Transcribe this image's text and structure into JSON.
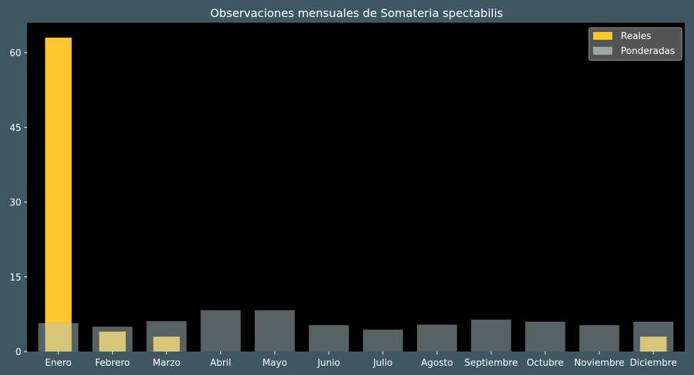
{
  "chart_data": {
    "type": "bar",
    "title": "Observaciones mensuales de Somateria spectabilis",
    "xlabel": "",
    "ylabel": "",
    "categories": [
      "Enero",
      "Febrero",
      "Marzo",
      "Abril",
      "Mayo",
      "Junio",
      "Julio",
      "Agosto",
      "Septiembre",
      "Octubre",
      "Noviembre",
      "Diciembre"
    ],
    "series": [
      {
        "name": "Reales",
        "color": "#ffc72c",
        "values": [
          63,
          4,
          3,
          0,
          0,
          0,
          0,
          0,
          0,
          0,
          0,
          3
        ]
      },
      {
        "name": "Ponderadas",
        "color": "#b0c4c8",
        "opacity": 0.5,
        "values": [
          5.7,
          5.0,
          6.1,
          8.3,
          8.3,
          5.3,
          4.4,
          5.4,
          6.4,
          6.0,
          5.3,
          6.0
        ]
      }
    ],
    "ylim": [
      0,
      66
    ],
    "yticks": [
      0,
      15,
      30,
      45,
      60
    ],
    "grid": false,
    "legend_position": "top-right",
    "plot_background": "#000000",
    "figure_background": "#3f5663"
  }
}
